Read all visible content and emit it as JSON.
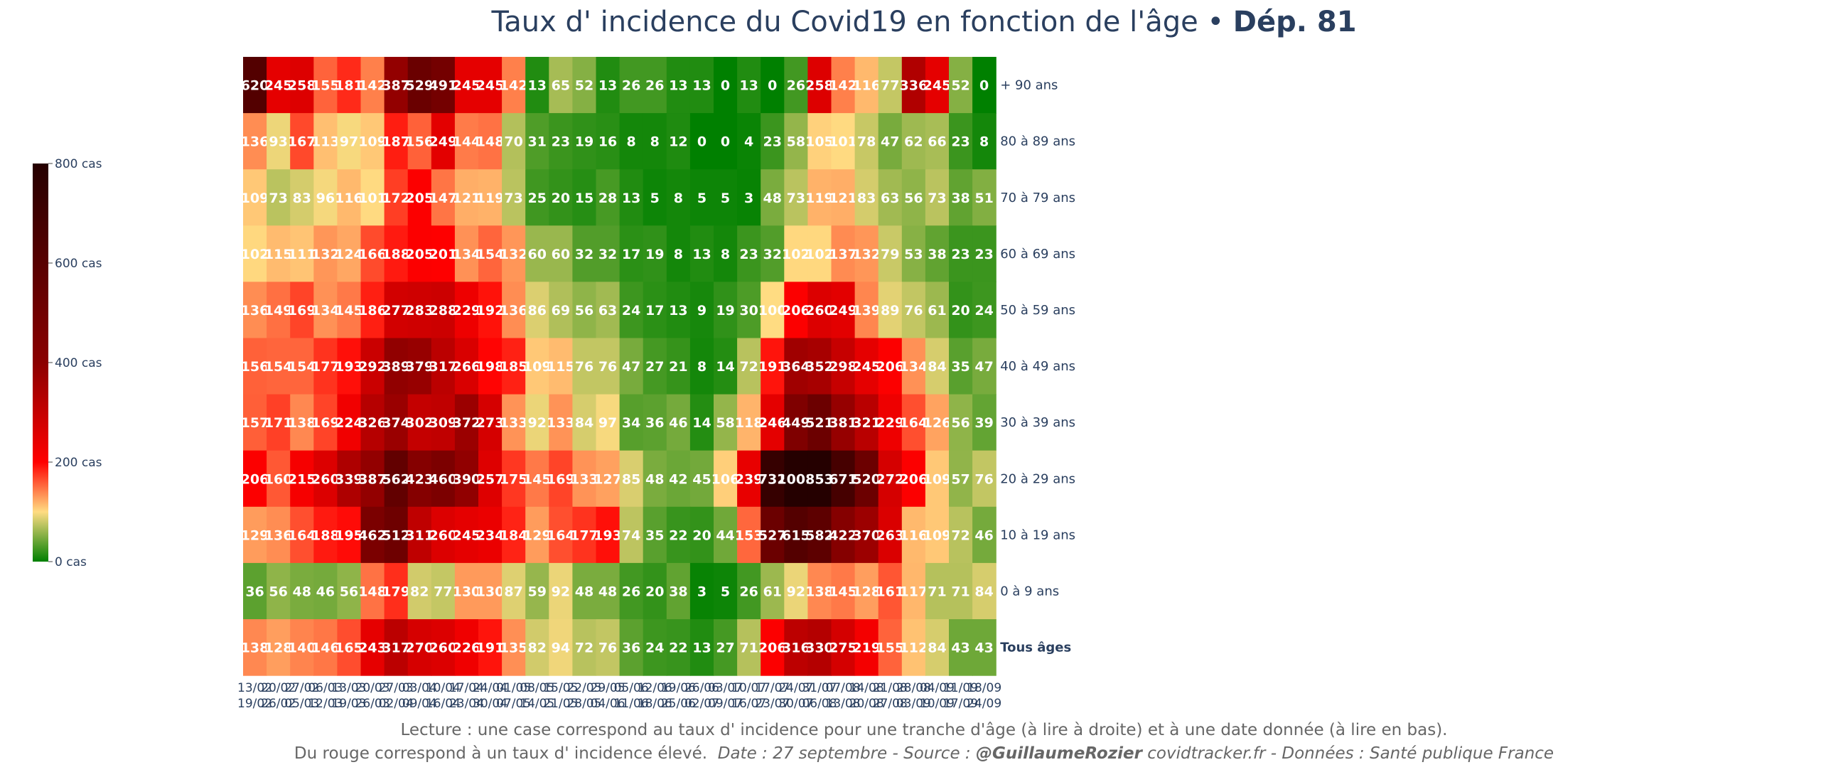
{
  "title": {
    "main": "Taux d' incidence du Covid19 en fonction de l'âge",
    "separator": " • ",
    "dept": "Dép. 81"
  },
  "footer": {
    "line1": "Lecture : une case correspond au taux d' incidence pour une tranche d'âge (à lire à droite) et à une date donnée (à lire en bas).",
    "line2_plain": "Du rouge correspond à un taux d' incidence élevé.",
    "line2_italic_a": "Date : 27 septembre - Source : ",
    "line2_bold": "@GuillaumeRozier",
    "line2_italic_b": " covidtracker.fr - Données : Santé publique France"
  },
  "colors": {
    "scale": [
      "#008000",
      "#ffdc82",
      "#ff0000",
      "#8b0000",
      "#250000"
    ],
    "scale_stops": [
      0,
      100,
      200,
      400,
      800
    ],
    "cell_text": "#ffffff",
    "axis_text": "#2a3f5f"
  },
  "chart_data": {
    "type": "heatmap",
    "title": "Taux d' incidence du Covid19 en fonction de l'âge • Dép. 81",
    "x_start": [
      "13/02",
      "20/02",
      "27/02",
      "06/03",
      "13/03",
      "20/03",
      "27/03",
      "03/04",
      "10/04",
      "17/04",
      "24/04",
      "01/05",
      "08/05",
      "15/05",
      "22/05",
      "29/05",
      "05/06",
      "12/06",
      "19/06",
      "26/06",
      "03/07",
      "10/07",
      "17/07",
      "24/07",
      "31/07",
      "07/08",
      "14/08",
      "21/08",
      "28/08",
      "04/09",
      "11/09",
      "18/09"
    ],
    "x_end": [
      "19/02",
      "26/02",
      "05/03",
      "12/03",
      "19/03",
      "26/03",
      "02/04",
      "09/04",
      "16/04",
      "23/04",
      "30/04",
      "07/05",
      "14/05",
      "21/05",
      "28/05",
      "04/06",
      "11/06",
      "18/06",
      "25/06",
      "02/07",
      "09/07",
      "16/07",
      "23/07",
      "30/07",
      "06/08",
      "13/08",
      "20/08",
      "27/08",
      "03/09",
      "10/09",
      "17/09",
      "24/09"
    ],
    "rows": [
      "+ 90 ans",
      "80 à 89 ans",
      "70 à 79 ans",
      "60 à 69 ans",
      "50 à 59 ans",
      "40 à 49 ans",
      "30 à 39 ans",
      "20 à 29 ans",
      "10 à 19 ans",
      "0 à 9 ans",
      "Tous âges"
    ],
    "bold_row": "Tous âges",
    "values": [
      [
        620,
        245,
        258,
        155,
        181,
        142,
        387,
        529,
        491,
        245,
        245,
        142,
        13,
        65,
        52,
        13,
        26,
        26,
        13,
        13,
        0,
        13,
        0,
        26,
        258,
        142,
        116,
        77,
        336,
        245,
        52,
        0
      ],
      [
        136,
        93,
        167,
        113,
        97,
        109,
        187,
        156,
        249,
        144,
        148,
        70,
        31,
        23,
        19,
        16,
        8,
        8,
        12,
        0,
        0,
        4,
        23,
        58,
        105,
        101,
        78,
        47,
        62,
        66,
        23,
        8
      ],
      [
        109,
        73,
        83,
        96,
        116,
        101,
        172,
        205,
        147,
        121,
        119,
        73,
        25,
        20,
        15,
        28,
        13,
        5,
        8,
        5,
        5,
        3,
        48,
        73,
        119,
        121,
        83,
        63,
        56,
        73,
        38,
        51
      ],
      [
        102,
        115,
        111,
        132,
        124,
        166,
        188,
        205,
        201,
        134,
        154,
        132,
        60,
        60,
        32,
        32,
        17,
        19,
        8,
        13,
        8,
        23,
        32,
        102,
        102,
        137,
        132,
        79,
        53,
        38,
        23,
        23
      ],
      [
        136,
        149,
        169,
        134,
        145,
        186,
        277,
        283,
        288,
        229,
        192,
        136,
        86,
        69,
        56,
        63,
        24,
        17,
        13,
        9,
        19,
        30,
        100,
        206,
        260,
        249,
        139,
        89,
        76,
        61,
        20,
        24
      ],
      [
        156,
        154,
        154,
        177,
        193,
        292,
        389,
        379,
        317,
        266,
        198,
        185,
        109,
        115,
        76,
        76,
        47,
        27,
        21,
        8,
        14,
        72,
        191,
        364,
        352,
        298,
        245,
        206,
        134,
        84,
        35,
        47
      ],
      [
        157,
        171,
        138,
        169,
        224,
        326,
        374,
        302,
        309,
        372,
        273,
        133,
        92,
        133,
        84,
        97,
        34,
        36,
        46,
        14,
        58,
        118,
        246,
        449,
        521,
        381,
        321,
        229,
        164,
        126,
        56,
        39
      ],
      [
        206,
        160,
        215,
        260,
        339,
        387,
        562,
        423,
        460,
        390,
        257,
        175,
        145,
        169,
        133,
        127,
        85,
        48,
        42,
        45,
        106,
        239,
        732,
        1001,
        853,
        671,
        520,
        272,
        206,
        109,
        57,
        76
      ],
      [
        129,
        136,
        164,
        188,
        195,
        462,
        512,
        311,
        260,
        245,
        234,
        184,
        129,
        164,
        177,
        193,
        74,
        35,
        22,
        20,
        44,
        153,
        527,
        615,
        582,
        422,
        370,
        263,
        116,
        109,
        72,
        46
      ],
      [
        36,
        56,
        48,
        46,
        56,
        148,
        179,
        82,
        77,
        130,
        130,
        87,
        59,
        92,
        48,
        48,
        26,
        20,
        38,
        3,
        5,
        26,
        61,
        92,
        138,
        145,
        128,
        161,
        117,
        71,
        71,
        84
      ],
      [
        138,
        128,
        140,
        146,
        165,
        243,
        317,
        270,
        260,
        226,
        191,
        135,
        82,
        94,
        72,
        76,
        36,
        24,
        22,
        13,
        27,
        71,
        206,
        316,
        330,
        275,
        219,
        155,
        112,
        84,
        43,
        43
      ]
    ],
    "colorbar": {
      "range": [
        0,
        800
      ],
      "ticks": [
        0,
        200,
        400,
        600,
        800
      ],
      "tick_labels": [
        "0 cas",
        "200 cas",
        "400 cas",
        "600 cas",
        "800 cas"
      ]
    }
  }
}
